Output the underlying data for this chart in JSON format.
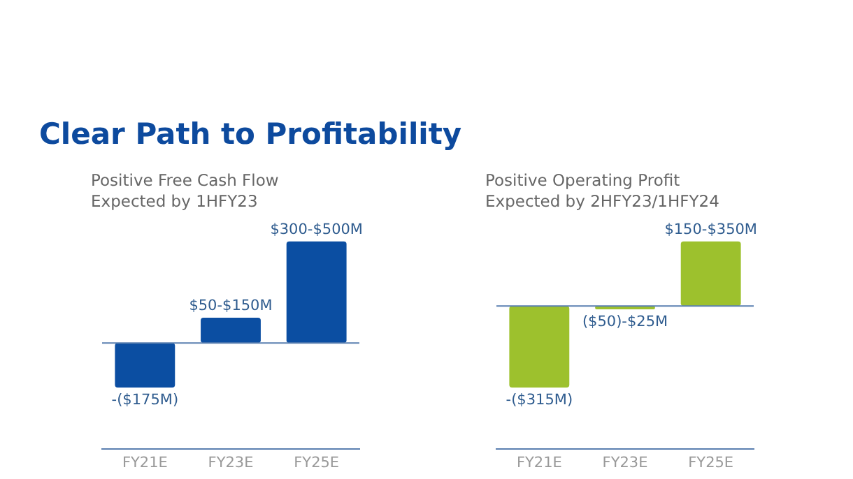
{
  "chart_data": [
    {
      "type": "bar",
      "title": "Clear Path to Profitability",
      "subtitle": "Positive Free Cash Flow\nExpected by 1HFY23",
      "categories": [
        "FY21E",
        "FY23E",
        "FY25E"
      ],
      "values": [
        -175,
        100,
        400
      ],
      "value_labels": [
        "-($175M)",
        "$50-$150M",
        "$300-$500M"
      ],
      "color": "#0b4ea2",
      "tick_labels": "x",
      "ref_lines": [
        {
          "axis": "y",
          "value": 0,
          "color": "#5a7fb0"
        }
      ],
      "grid": false,
      "legend": false
    },
    {
      "type": "bar",
      "subtitle": "Positive Operating Profit\nExpected by 2HFY23/1HFY24",
      "categories": [
        "FY21E",
        "FY23E",
        "FY25E"
      ],
      "values": [
        -315,
        -12.5,
        250
      ],
      "value_labels": [
        "-($315M)",
        "($50)-$25M",
        "$150-$350M"
      ],
      "color": "#9dc12d",
      "tick_labels": "x",
      "ref_lines": [
        {
          "axis": "y",
          "value": 0,
          "color": "#5a7fb0"
        }
      ],
      "grid": false,
      "legend": false
    }
  ]
}
